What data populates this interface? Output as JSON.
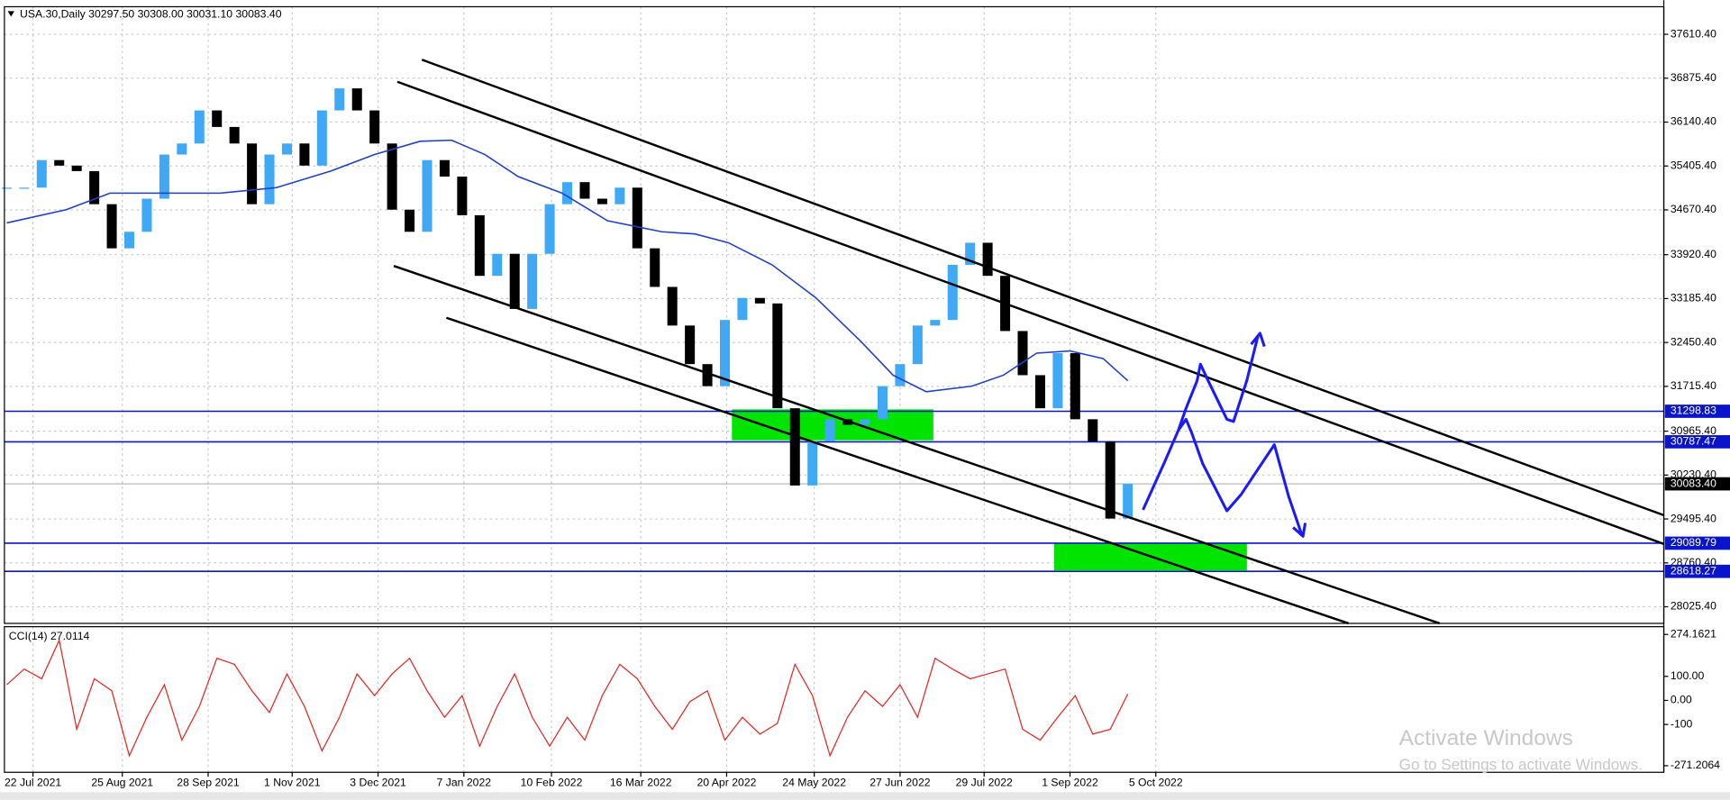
{
  "chart_data": [
    {
      "type": "candlestick",
      "title": "USA.30,Daily  30297.50 30308.00 30031.10 30083.40",
      "close": [
        35043,
        35043,
        35504,
        35412,
        35320,
        34766,
        34027,
        34304,
        34858,
        35597,
        35782,
        36336,
        36059,
        35782,
        34766,
        35597,
        35782,
        35412,
        36336,
        36705,
        36336,
        35782,
        34674,
        34304,
        35504,
        35228,
        34581,
        33566,
        33935,
        33012,
        33935,
        34766,
        35135,
        34858,
        34766,
        35043,
        34027,
        33381,
        32734,
        32088,
        31719,
        32827,
        33196,
        33104,
        31349,
        30056,
        30795,
        31165,
        31072,
        31165,
        31719,
        32088,
        32734,
        32827,
        33750,
        34120,
        33566,
        32642,
        31903,
        31349,
        32272,
        31165,
        30795,
        29502,
        30083.4
      ],
      "up_color": "#3fa9f5",
      "down_color": "#000000",
      "ma": {
        "color": "#1f3fd1",
        "x": [
          0,
          3.4,
          5.9,
          12.2,
          15.4,
          18.5,
          21,
          23.6,
          25.4,
          27.3,
          29.2,
          31.7,
          34.3,
          37.4,
          39.3,
          41.2,
          43.7,
          46.2,
          48.8,
          50.6,
          52.5,
          55.1,
          56.9,
          58.8,
          60.7,
          62.6,
          64
        ],
        "values": [
          34452,
          34674,
          34951,
          34951,
          35043,
          35320,
          35597,
          35819,
          35837,
          35597,
          35228,
          34951,
          34489,
          34304,
          34267,
          34120,
          33750,
          33196,
          32457,
          31903,
          31626,
          31719,
          31903,
          32272,
          32309,
          32180,
          31811
        ]
      },
      "xlim": [
        -0.13,
        94.6
      ],
      "ylim": [
        27747,
        38072
      ],
      "yticks": [
        {
          "value": 37610.4,
          "label": "37610.40"
        },
        {
          "value": 36875.4,
          "label": "36875.40"
        },
        {
          "value": 36140.4,
          "label": "36140.40"
        },
        {
          "value": 35405.4,
          "label": "35405.40"
        },
        {
          "value": 34670.4,
          "label": "34670.40"
        },
        {
          "value": 33920.4,
          "label": "33920.40"
        },
        {
          "value": 33185.4,
          "label": "33185.40"
        },
        {
          "value": 32450.4,
          "label": "32450.40"
        },
        {
          "value": 31715.4,
          "label": "31715.40"
        },
        {
          "value": 30965.4,
          "label": "30965.40"
        },
        {
          "value": 30230.4,
          "label": "30230.40"
        },
        {
          "value": 29495.4,
          "label": "29495.40"
        },
        {
          "value": 28760.4,
          "label": "28760.40"
        },
        {
          "value": 28025.4,
          "label": "28025.40"
        }
      ],
      "xticks": [
        {
          "value": 1.5,
          "label": "22 Jul 2021"
        },
        {
          "value": 6.6,
          "label": "25 Aug 2021"
        },
        {
          "value": 11.5,
          "label": "28 Sep 2021"
        },
        {
          "value": 16.3,
          "label": "1 Nov 2021"
        },
        {
          "value": 21.2,
          "label": "3 Dec 2021"
        },
        {
          "value": 26.1,
          "label": "7 Jan 2022"
        },
        {
          "value": 31.1,
          "label": "10 Feb 2022"
        },
        {
          "value": 36.2,
          "label": "16 Mar 2022"
        },
        {
          "value": 41.1,
          "label": "20 Apr 2022"
        },
        {
          "value": 46.1,
          "label": "24 May 2022"
        },
        {
          "value": 51,
          "label": "27 Jun 2022"
        },
        {
          "value": 55.8,
          "label": "29 Jul 2022"
        },
        {
          "value": 60.7,
          "label": "1 Sep 2022"
        },
        {
          "value": 65.6,
          "label": "5 Oct 2022"
        }
      ],
      "grid": true,
      "levels": [
        {
          "value": 31298.83,
          "label": "31298.83"
        },
        {
          "value": 30787.47,
          "label": "30787.47"
        },
        {
          "value": 29089.79,
          "label": "29089.79"
        },
        {
          "value": 28618.27,
          "label": "28618.27"
        }
      ],
      "level_color": "#0a14c8",
      "last": {
        "value": 30083.4,
        "label": "30083.40"
      },
      "zones": [
        {
          "x": [
            41.4,
            52.9
          ],
          "y": [
            31330,
            30813
          ]
        },
        {
          "x": [
            59.8,
            70.8
          ],
          "y": [
            29096,
            28634
          ]
        }
      ],
      "zone_color": "#00e400",
      "trendlines": [
        {
          "x": [
            23.7,
            94.6
          ],
          "y": [
            37185,
            29558
          ]
        },
        {
          "x": [
            22.3,
            94.6
          ],
          "y": [
            36816,
            29077
          ]
        },
        {
          "x": [
            22.1,
            81.8
          ],
          "y": [
            33732,
            27747
          ]
        },
        {
          "x": [
            25.1,
            76.6
          ],
          "y": [
            32864,
            27747
          ]
        }
      ]
    },
    {
      "type": "line",
      "title": "CCI(14) 27.0114",
      "color": "#e8231e",
      "values": [
        65,
        130,
        90,
        250,
        -120,
        90,
        40,
        -230,
        -70,
        65,
        -165,
        -25,
        175,
        150,
        40,
        -50,
        110,
        -25,
        -210,
        -70,
        110,
        20,
        110,
        175,
        40,
        -70,
        20,
        -190,
        -25,
        110,
        -70,
        -190,
        -70,
        -165,
        20,
        150,
        90,
        -25,
        -120,
        -5,
        40,
        -165,
        -70,
        -140,
        -95,
        150,
        20,
        -230,
        -70,
        40,
        -25,
        65,
        -70,
        175,
        130,
        90,
        110,
        130,
        -120,
        -165,
        -70,
        20,
        -140,
        -120,
        27.0114
      ],
      "ylim": [
        -271.2064,
        274.1621
      ],
      "yticks": [
        274.1621,
        {
          "value": 100,
          "label": "100.00"
        },
        {
          "value": 0,
          "label": "0.00"
        },
        -100,
        -271.2064
      ]
    }
  ],
  "watermark": [
    "Activate Windows",
    "Go to Settings to activate Windows."
  ]
}
